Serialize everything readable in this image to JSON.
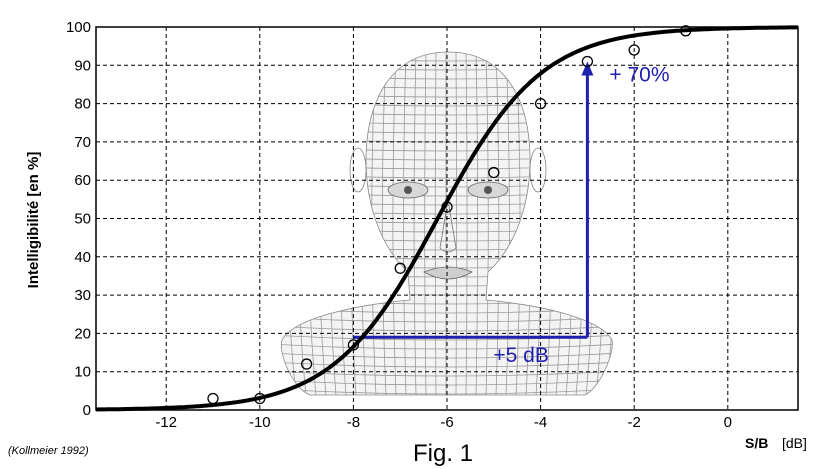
{
  "chart_data": {
    "type": "scatter",
    "ylabel": "Intelligibilité  [en %]",
    "xlabel_main": "S/B",
    "xlabel_unit": "[dB]",
    "xlim": [
      -13.5,
      1.5
    ],
    "ylim": [
      0,
      100
    ],
    "x_ticks": [
      -12,
      -10,
      -8,
      -6,
      -4,
      -2,
      0
    ],
    "x_tick_labels": [
      "-12",
      "-10",
      "-8",
      "-6",
      "-4",
      "-2",
      "0"
    ],
    "y_ticks": [
      0,
      10,
      20,
      30,
      40,
      50,
      60,
      70,
      80,
      90,
      100
    ],
    "y_tick_labels": [
      "0",
      "10",
      "20",
      "30",
      "40",
      "50",
      "60",
      "70",
      "80",
      "90",
      "100"
    ],
    "grid": true,
    "series": [
      {
        "type": "scatter",
        "x": [
          -11,
          -10,
          -9,
          -8,
          -7,
          -6,
          -5,
          -4,
          -3,
          -2,
          -0.9
        ],
        "y": [
          3,
          3,
          12,
          17,
          37,
          53,
          62,
          80,
          91,
          94,
          99
        ]
      },
      {
        "type": "line",
        "curve": "logistic",
        "midpoint": -6.2,
        "slope_per_dB": 0.9
      }
    ],
    "annotations": [
      {
        "text": "+5 dB",
        "from": [
          -8,
          19
        ],
        "to": [
          -3,
          19
        ]
      },
      {
        "text": "+ 70%",
        "from": [
          -3,
          19
        ],
        "to": [
          -3,
          91
        ]
      }
    ],
    "colors": {
      "curve": "#000000",
      "annotation": "#1f1fb0",
      "grid": "#000000"
    }
  },
  "source_note": "(Kollmeier 1992)",
  "figure_caption": "Fig. 1",
  "illustration": "wireframe-head"
}
